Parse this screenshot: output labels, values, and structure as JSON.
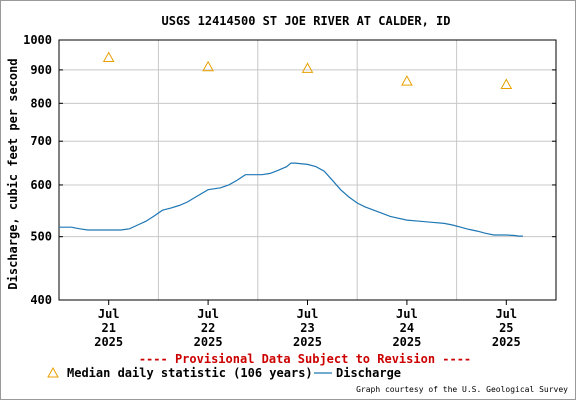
{
  "chart_data": {
    "type": "line",
    "title": "USGS 12414500 ST JOE RIVER AT CALDER, ID",
    "ylabel": "Discharge, cubic feet per second",
    "xlabel": "",
    "y_scale": "log",
    "ylim": [
      400,
      1000
    ],
    "yticks": [
      400,
      500,
      600,
      700,
      800,
      900,
      1000
    ],
    "ytick_labels": [
      "400",
      "500",
      "600",
      "700",
      "800",
      "900",
      "1000"
    ],
    "xlim": [
      "2025-07-20T12:00",
      "2025-07-25T12:00"
    ],
    "xticks": [
      {
        "x": "2025-07-21",
        "label": [
          "Jul",
          "21",
          "2025"
        ]
      },
      {
        "x": "2025-07-22",
        "label": [
          "Jul",
          "22",
          "2025"
        ]
      },
      {
        "x": "2025-07-23",
        "label": [
          "Jul",
          "23",
          "2025"
        ]
      },
      {
        "x": "2025-07-24",
        "label": [
          "Jul",
          "24",
          "2025"
        ]
      },
      {
        "x": "2025-07-25",
        "label": [
          "Jul",
          "25",
          "2025"
        ]
      }
    ],
    "grid": true,
    "series": [
      {
        "name": "Discharge",
        "type": "line",
        "color": "#1f77b4",
        "points": [
          [
            "2025-07-20T12:00",
            517
          ],
          [
            "2025-07-20T15:00",
            517
          ],
          [
            "2025-07-20T17:00",
            514
          ],
          [
            "2025-07-20T19:00",
            512
          ],
          [
            "2025-07-21T00:00",
            512
          ],
          [
            "2025-07-21T03:00",
            512
          ],
          [
            "2025-07-21T05:00",
            514
          ],
          [
            "2025-07-21T07:00",
            521
          ],
          [
            "2025-07-21T09:00",
            528
          ],
          [
            "2025-07-21T11:00",
            538
          ],
          [
            "2025-07-21T13:00",
            549
          ],
          [
            "2025-07-21T15:00",
            553
          ],
          [
            "2025-07-21T17:00",
            558
          ],
          [
            "2025-07-21T19:00",
            565
          ],
          [
            "2025-07-21T21:00",
            575
          ],
          [
            "2025-07-22T00:00",
            590
          ],
          [
            "2025-07-22T03:00",
            594
          ],
          [
            "2025-07-22T05:00",
            600
          ],
          [
            "2025-07-22T07:00",
            610
          ],
          [
            "2025-07-22T09:00",
            622
          ],
          [
            "2025-07-22T11:00",
            622
          ],
          [
            "2025-07-22T13:00",
            622
          ],
          [
            "2025-07-22T15:00",
            625
          ],
          [
            "2025-07-22T17:00",
            632
          ],
          [
            "2025-07-22T19:00",
            640
          ],
          [
            "2025-07-22T20:00",
            648
          ],
          [
            "2025-07-22T21:00",
            648
          ],
          [
            "2025-07-23T00:00",
            645
          ],
          [
            "2025-07-23T02:00",
            640
          ],
          [
            "2025-07-23T04:00",
            630
          ],
          [
            "2025-07-23T06:00",
            610
          ],
          [
            "2025-07-23T08:00",
            590
          ],
          [
            "2025-07-23T10:00",
            575
          ],
          [
            "2025-07-23T12:00",
            563
          ],
          [
            "2025-07-23T14:00",
            555
          ],
          [
            "2025-07-23T16:00",
            549
          ],
          [
            "2025-07-23T18:00",
            543
          ],
          [
            "2025-07-23T20:00",
            537
          ],
          [
            "2025-07-24T00:00",
            530
          ],
          [
            "2025-07-24T03:00",
            528
          ],
          [
            "2025-07-24T06:00",
            526
          ],
          [
            "2025-07-24T09:00",
            524
          ],
          [
            "2025-07-24T11:00",
            521
          ],
          [
            "2025-07-24T13:00",
            517
          ],
          [
            "2025-07-24T15:00",
            513
          ],
          [
            "2025-07-24T17:00",
            510
          ],
          [
            "2025-07-24T19:00",
            506
          ],
          [
            "2025-07-24T21:00",
            503
          ],
          [
            "2025-07-25T00:00",
            503
          ],
          [
            "2025-07-25T02:00",
            502
          ],
          [
            "2025-07-25T03:00",
            501
          ],
          [
            "2025-07-25T04:00",
            501
          ]
        ]
      },
      {
        "name": "Median daily statistic (106 years)",
        "type": "scatter",
        "marker": "triangle",
        "color": "#e8a000",
        "points": [
          [
            "2025-07-21T00:00",
            940
          ],
          [
            "2025-07-22T00:00",
            910
          ],
          [
            "2025-07-23T00:00",
            905
          ],
          [
            "2025-07-24T00:00",
            865
          ],
          [
            "2025-07-25T00:00",
            855
          ]
        ]
      }
    ],
    "provisional_note": "---- Provisional Data Subject to Revision ----",
    "legend": {
      "placement": "bottom-left"
    },
    "credit": "Graph courtesy of the U.S. Geological Survey"
  },
  "colors": {
    "grid": "#c8c8c8",
    "axis": "#000000",
    "provisional": "#cc0000"
  }
}
